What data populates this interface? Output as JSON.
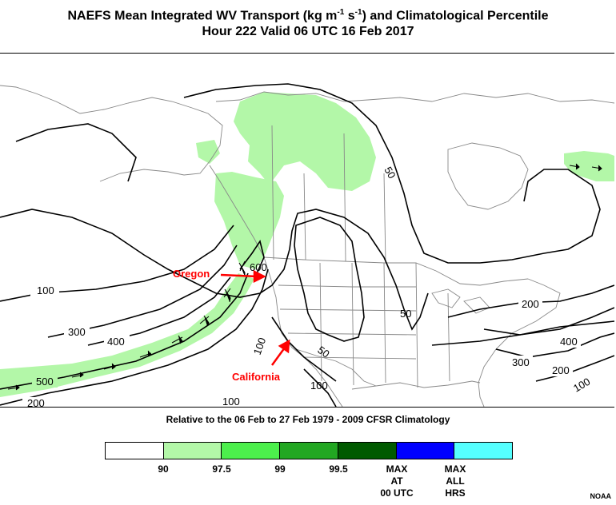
{
  "header": {
    "title_line1_prefix": "NAEFS Mean Integrated WV Transport (kg m",
    "title_sup1": "-1",
    "title_mid": " s",
    "title_sup2": "-1",
    "title_suffix": ") and Climatological Percentile",
    "title_line2": "Hour 222 Valid 06 UTC 16 Feb 2017"
  },
  "map": {
    "contour_labels": [
      "100",
      "300",
      "400",
      "500",
      "200",
      "100",
      "50",
      "600",
      "50",
      "100",
      "200",
      "400",
      "300",
      "200",
      "100",
      "100",
      "50"
    ],
    "annotations": {
      "oregon": "Oregon",
      "california": "California"
    },
    "colors": {
      "contour": "#000000",
      "border": "#888888",
      "annotation": "#ff0000"
    }
  },
  "subtitle": "Relative to the 06 Feb to 27 Feb 1979 - 2009 CFSR Climatology",
  "legend": {
    "swatches": [
      {
        "color": "#ffffff"
      },
      {
        "color": "#b3f7a8"
      },
      {
        "color": "#4cf04c"
      },
      {
        "color": "#22a722"
      },
      {
        "color": "#005a00"
      },
      {
        "color": "#0000ff"
      },
      {
        "color": "#55ffff"
      }
    ],
    "labels": [
      {
        "text": "90"
      },
      {
        "text": "97.5"
      },
      {
        "text": "99"
      },
      {
        "text": "99.5"
      },
      {
        "text": "MAX\nAT\n00 UTC"
      },
      {
        "text": "MAX\nALL\nHRS"
      }
    ]
  },
  "credit": "NOAA"
}
